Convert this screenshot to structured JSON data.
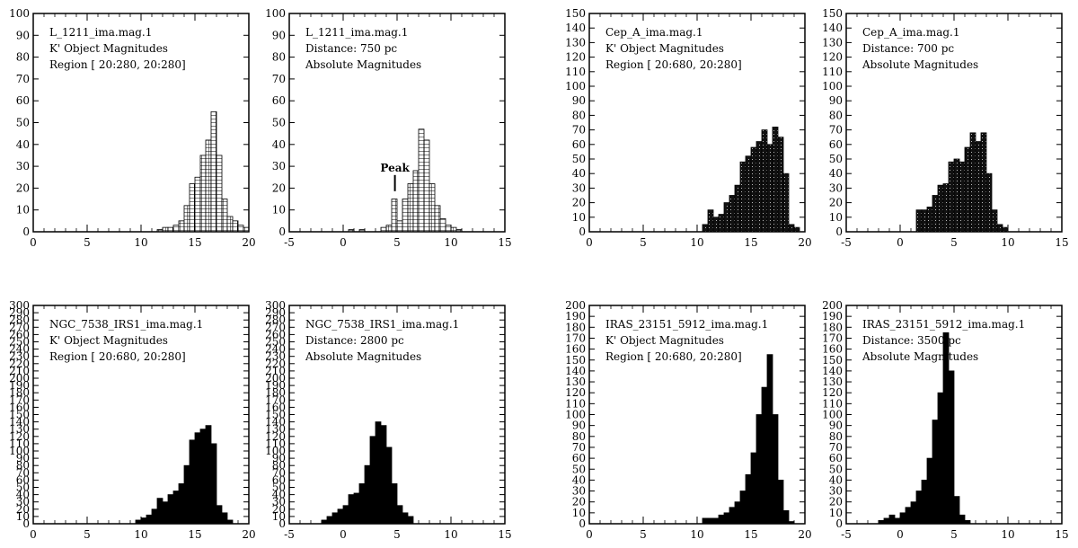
{
  "chart_data": [
    {
      "type": "bar",
      "id": "L1211-k",
      "annotations": [
        "L_1211_ima.mag.1",
        "K' Object Magnitudes",
        "Region [ 20:280, 20:280]"
      ],
      "xlim": [
        0,
        20
      ],
      "ylim": [
        0,
        100
      ],
      "xticks": [
        0,
        5,
        10,
        15,
        20
      ],
      "yticks": [
        0,
        10,
        20,
        30,
        40,
        50,
        60,
        70,
        80,
        90,
        100
      ],
      "binwidth": 0.5,
      "fill": "hatch",
      "bins": [
        [
          11.5,
          1
        ],
        [
          12,
          2
        ],
        [
          12.5,
          2
        ],
        [
          13,
          3
        ],
        [
          13.5,
          5
        ],
        [
          14,
          12
        ],
        [
          14.5,
          22
        ],
        [
          15,
          25
        ],
        [
          15.5,
          35
        ],
        [
          16,
          42
        ],
        [
          16.5,
          55
        ],
        [
          17,
          35
        ],
        [
          17.5,
          15
        ],
        [
          18,
          7
        ],
        [
          18.5,
          5
        ],
        [
          19,
          3
        ],
        [
          19.5,
          2
        ]
      ]
    },
    {
      "type": "bar",
      "id": "L1211-abs",
      "annotations": [
        "L_1211_ima.mag.1",
        "Distance: 750    pc",
        "Absolute Magnitudes"
      ],
      "peak_label": "Peak",
      "peak_x": 4.8,
      "peak_y": 26,
      "xlim": [
        -5,
        15
      ],
      "ylim": [
        0,
        100
      ],
      "xticks": [
        -5,
        0,
        5,
        10,
        15
      ],
      "yticks": [
        0,
        10,
        20,
        30,
        40,
        50,
        60,
        70,
        80,
        90,
        100
      ],
      "binwidth": 0.5,
      "fill": "hatch",
      "bins": [
        [
          0.5,
          1
        ],
        [
          1.5,
          1
        ],
        [
          3.5,
          2
        ],
        [
          4,
          3
        ],
        [
          4.5,
          15
        ],
        [
          5,
          5
        ],
        [
          5.5,
          15
        ],
        [
          6,
          22
        ],
        [
          6.5,
          28
        ],
        [
          7,
          47
        ],
        [
          7.5,
          42
        ],
        [
          8,
          22
        ],
        [
          8.5,
          12
        ],
        [
          9,
          6
        ],
        [
          9.5,
          3
        ],
        [
          10,
          2
        ],
        [
          10.5,
          1
        ]
      ]
    },
    {
      "type": "bar",
      "id": "CepA-k",
      "annotations": [
        "Cep_A_ima.mag.1",
        "K' Object Magnitudes",
        "Region [ 20:680, 20:280]"
      ],
      "xlim": [
        0,
        20
      ],
      "ylim": [
        0,
        150
      ],
      "xticks": [
        0,
        5,
        10,
        15,
        20
      ],
      "yticks": [
        0,
        10,
        20,
        30,
        40,
        50,
        60,
        70,
        80,
        90,
        100,
        110,
        120,
        130,
        140,
        150
      ],
      "binwidth": 0.5,
      "fill": "dark",
      "bins": [
        [
          10.5,
          5
        ],
        [
          11,
          15
        ],
        [
          11.5,
          10
        ],
        [
          12,
          12
        ],
        [
          12.5,
          20
        ],
        [
          13,
          25
        ],
        [
          13.5,
          32
        ],
        [
          14,
          48
        ],
        [
          14.5,
          52
        ],
        [
          15,
          58
        ],
        [
          15.5,
          62
        ],
        [
          16,
          70
        ],
        [
          16.5,
          60
        ],
        [
          17,
          72
        ],
        [
          17.5,
          65
        ],
        [
          18,
          40
        ],
        [
          18.5,
          5
        ],
        [
          19,
          3
        ]
      ]
    },
    {
      "type": "bar",
      "id": "CepA-abs",
      "annotations": [
        "Cep_A_ima.mag.1",
        "Distance: 700    pc",
        "Absolute Magnitudes"
      ],
      "xlim": [
        -5,
        15
      ],
      "ylim": [
        0,
        150
      ],
      "xticks": [
        -5,
        0,
        5,
        10,
        15
      ],
      "yticks": [
        0,
        10,
        20,
        30,
        40,
        50,
        60,
        70,
        80,
        90,
        100,
        110,
        120,
        130,
        140,
        150
      ],
      "binwidth": 0.5,
      "fill": "dark",
      "bins": [
        [
          1.5,
          15
        ],
        [
          2,
          15
        ],
        [
          2.5,
          17
        ],
        [
          3,
          25
        ],
        [
          3.5,
          32
        ],
        [
          4,
          33
        ],
        [
          4.5,
          48
        ],
        [
          5,
          50
        ],
        [
          5.5,
          48
        ],
        [
          6,
          58
        ],
        [
          6.5,
          68
        ],
        [
          7,
          62
        ],
        [
          7.5,
          68
        ],
        [
          8,
          40
        ],
        [
          8.5,
          15
        ],
        [
          9,
          5
        ],
        [
          9.5,
          3
        ]
      ]
    },
    {
      "type": "bar",
      "id": "NGC7538-k",
      "annotations": [
        "NGC_7538_IRS1_ima.mag.1",
        "K' Object Magnitudes",
        "Region [ 20:680, 20:280]"
      ],
      "xlim": [
        0,
        20
      ],
      "ylim": [
        0,
        300
      ],
      "xticks": [
        0,
        5,
        10,
        15,
        20
      ],
      "yticks": [
        0,
        10,
        20,
        30,
        40,
        50,
        60,
        70,
        80,
        90,
        100,
        110,
        120,
        130,
        140,
        150,
        160,
        170,
        180,
        190,
        200,
        210,
        220,
        230,
        240,
        250,
        260,
        270,
        280,
        290,
        300
      ],
      "binwidth": 0.5,
      "fill": "solid",
      "bins": [
        [
          9.5,
          5
        ],
        [
          10,
          8
        ],
        [
          10.5,
          12
        ],
        [
          11,
          20
        ],
        [
          11.5,
          35
        ],
        [
          12,
          30
        ],
        [
          12.5,
          40
        ],
        [
          13,
          45
        ],
        [
          13.5,
          55
        ],
        [
          14,
          80
        ],
        [
          14.5,
          115
        ],
        [
          15,
          125
        ],
        [
          15.5,
          130
        ],
        [
          16,
          135
        ],
        [
          16.5,
          110
        ],
        [
          17,
          25
        ],
        [
          17.5,
          15
        ],
        [
          18,
          5
        ]
      ]
    },
    {
      "type": "bar",
      "id": "NGC7538-abs",
      "annotations": [
        "NGC_7538_IRS1_ima.mag.1",
        "Distance: 2800    pc",
        "Absolute Magnitudes"
      ],
      "xlim": [
        -5,
        15
      ],
      "ylim": [
        0,
        300
      ],
      "xticks": [
        -5,
        0,
        5,
        10,
        15
      ],
      "yticks": [
        0,
        10,
        20,
        30,
        40,
        50,
        60,
        70,
        80,
        90,
        100,
        110,
        120,
        130,
        140,
        150,
        160,
        170,
        180,
        190,
        200,
        210,
        220,
        230,
        240,
        250,
        260,
        270,
        280,
        290,
        300
      ],
      "binwidth": 0.5,
      "fill": "solid",
      "bins": [
        [
          -2,
          5
        ],
        [
          -1.5,
          10
        ],
        [
          -1,
          15
        ],
        [
          -0.5,
          20
        ],
        [
          0,
          25
        ],
        [
          0.5,
          40
        ],
        [
          1,
          42
        ],
        [
          1.5,
          55
        ],
        [
          2,
          80
        ],
        [
          2.5,
          120
        ],
        [
          3,
          140
        ],
        [
          3.5,
          135
        ],
        [
          4,
          105
        ],
        [
          4.5,
          55
        ],
        [
          5,
          25
        ],
        [
          5.5,
          15
        ],
        [
          6,
          10
        ]
      ]
    },
    {
      "type": "bar",
      "id": "IRAS-k",
      "annotations": [
        "IRAS_23151_5912_ima.mag.1",
        "K' Object Magnitudes",
        "Region [ 20:680, 20:280]"
      ],
      "xlim": [
        0,
        20
      ],
      "ylim": [
        0,
        200
      ],
      "xticks": [
        0,
        5,
        10,
        15,
        20
      ],
      "yticks": [
        0,
        10,
        20,
        30,
        40,
        50,
        60,
        70,
        80,
        90,
        100,
        110,
        120,
        130,
        140,
        150,
        160,
        170,
        180,
        190,
        200
      ],
      "binwidth": 0.5,
      "fill": "solid",
      "bins": [
        [
          10.5,
          5
        ],
        [
          11,
          5
        ],
        [
          11.5,
          5
        ],
        [
          12,
          8
        ],
        [
          12.5,
          10
        ],
        [
          13,
          15
        ],
        [
          13.5,
          20
        ],
        [
          14,
          30
        ],
        [
          14.5,
          45
        ],
        [
          15,
          65
        ],
        [
          15.5,
          100
        ],
        [
          16,
          125
        ],
        [
          16.5,
          155
        ],
        [
          17,
          100
        ],
        [
          17.5,
          40
        ],
        [
          18,
          12
        ],
        [
          18.5,
          2
        ]
      ]
    },
    {
      "type": "bar",
      "id": "IRAS-abs",
      "annotations": [
        "IRAS_23151_5912_ima.mag.1",
        "Distance: 3500    pc",
        "Absolute Magnitudes"
      ],
      "xlim": [
        -5,
        15
      ],
      "ylim": [
        0,
        200
      ],
      "xticks": [
        -5,
        0,
        5,
        10,
        15
      ],
      "yticks": [
        0,
        10,
        20,
        30,
        40,
        50,
        60,
        70,
        80,
        90,
        100,
        110,
        120,
        130,
        140,
        150,
        160,
        170,
        180,
        190,
        200
      ],
      "binwidth": 0.5,
      "fill": "solid",
      "bins": [
        [
          -2,
          3
        ],
        [
          -1.5,
          5
        ],
        [
          -1,
          8
        ],
        [
          -0.5,
          5
        ],
        [
          0,
          10
        ],
        [
          0.5,
          15
        ],
        [
          1,
          20
        ],
        [
          1.5,
          30
        ],
        [
          2,
          40
        ],
        [
          2.5,
          60
        ],
        [
          3,
          95
        ],
        [
          3.5,
          120
        ],
        [
          4,
          175
        ],
        [
          4.5,
          140
        ],
        [
          5,
          25
        ],
        [
          5.5,
          8
        ],
        [
          6,
          3
        ]
      ]
    }
  ]
}
